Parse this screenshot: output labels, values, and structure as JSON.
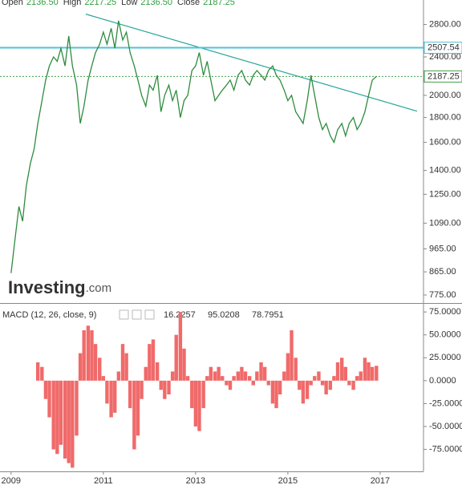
{
  "chart_data": [
    {
      "type": "line",
      "header": [
        {
          "name": "Open",
          "value": {
            "value": 2136.5,
            "label": "2136.50"
          }
        },
        {
          "name": "High",
          "value": {
            "value": 2217.25,
            "label": "2217.25"
          }
        },
        {
          "name": "Low",
          "value": {
            "value": 2136.5,
            "label": "2136.50"
          }
        },
        {
          "name": "Close",
          "value": {
            "value": 2187.25,
            "label": "2187.25"
          }
        }
      ],
      "watermark": [
        "Investing",
        ".com"
      ],
      "log_scale": true,
      "xlim": [
        2008.76,
        2017.94
      ],
      "xticks": [
        2009,
        2011,
        2013,
        2015,
        2017
      ],
      "ylim": [
        746,
        3145
      ],
      "yticks": [
        {
          "value": 775,
          "label": "775.00"
        },
        {
          "value": 865,
          "label": "865.00"
        },
        {
          "value": 965,
          "label": "965.00"
        },
        {
          "value": 1090,
          "label": "1090.00"
        },
        {
          "value": 1250,
          "label": "1250.00"
        },
        {
          "value": 1400,
          "label": "1400.00"
        },
        {
          "value": 1600,
          "label": "1600.00"
        },
        {
          "value": 1800,
          "label": "1800.00"
        },
        {
          "value": 2000,
          "label": "2000.00"
        },
        {
          "value": 2400,
          "label": "2400.00"
        },
        {
          "value": 2800,
          "label": "2800.00"
        }
      ],
      "levels": [
        {
          "value": 2507.54,
          "label": "2507.54",
          "color": "#4fc3d9",
          "dashed": false
        },
        {
          "value": 2187.25,
          "label": "2187.25",
          "color": "#43a047",
          "dashed": true
        }
      ],
      "trendline": {
        "x": [
          2010.62,
          2017.8
        ],
        "y": [
          2941,
          1855
        ],
        "color": "#26a69a"
      },
      "x": [
        2009.0,
        2009.08,
        2009.17,
        2009.25,
        2009.33,
        2009.42,
        2009.5,
        2009.58,
        2009.67,
        2009.75,
        2009.83,
        2009.92,
        2010.0,
        2010.08,
        2010.17,
        2010.25,
        2010.33,
        2010.42,
        2010.5,
        2010.58,
        2010.67,
        2010.75,
        2010.83,
        2010.92,
        2011.0,
        2011.08,
        2011.17,
        2011.25,
        2011.33,
        2011.42,
        2011.5,
        2011.58,
        2011.67,
        2011.75,
        2011.83,
        2011.92,
        2012.0,
        2012.08,
        2012.17,
        2012.25,
        2012.33,
        2012.42,
        2012.5,
        2012.58,
        2012.67,
        2012.75,
        2012.83,
        2012.92,
        2013.0,
        2013.08,
        2013.17,
        2013.25,
        2013.33,
        2013.42,
        2013.5,
        2013.58,
        2013.67,
        2013.75,
        2013.83,
        2013.92,
        2014.0,
        2014.08,
        2014.17,
        2014.25,
        2014.33,
        2014.42,
        2014.5,
        2014.58,
        2014.67,
        2014.75,
        2014.83,
        2014.92,
        2015.0,
        2015.08,
        2015.17,
        2015.25,
        2015.33,
        2015.42,
        2015.5,
        2015.58,
        2015.67,
        2015.75,
        2015.83,
        2015.92,
        2016.0,
        2016.08,
        2016.17,
        2016.25,
        2016.33,
        2016.42,
        2016.5,
        2016.58,
        2016.67,
        2016.75,
        2016.83,
        2016.92
      ],
      "series": [
        {
          "name": "Close",
          "color": "#2e8b3e",
          "values": [
            860,
            1000,
            1180,
            1100,
            1300,
            1450,
            1550,
            1750,
            1950,
            2150,
            2300,
            2400,
            2350,
            2500,
            2300,
            2650,
            2300,
            2100,
            1750,
            1900,
            2150,
            2300,
            2450,
            2550,
            2700,
            2550,
            2750,
            2500,
            2850,
            2600,
            2700,
            2450,
            2300,
            2150,
            2000,
            1900,
            2100,
            2050,
            2200,
            1850,
            2000,
            2100,
            1950,
            2050,
            1800,
            1950,
            2000,
            2250,
            2300,
            2450,
            2200,
            2350,
            2150,
            1950,
            2000,
            2050,
            2100,
            2150,
            2050,
            2200,
            2250,
            2150,
            2100,
            2200,
            2250,
            2200,
            2150,
            2250,
            2300,
            2200,
            2150,
            2050,
            1950,
            2000,
            1850,
            1800,
            1750,
            1950,
            2200,
            2000,
            1800,
            1700,
            1750,
            1650,
            1600,
            1700,
            1750,
            1650,
            1750,
            1800,
            1700,
            1750,
            1850,
            2000,
            2150,
            2187.25
          ]
        }
      ]
    },
    {
      "type": "bar",
      "title": "MACD (12, 26, close, 9)",
      "readouts": [
        {
          "value": 16.2257,
          "color": "#e04848"
        },
        {
          "value": 95.0208,
          "color": "#5a6fd6"
        },
        {
          "value": 78.7951,
          "color": "#e04848"
        }
      ],
      "xlim": [
        2008.76,
        2017.94
      ],
      "ylim": [
        -99,
        83
      ],
      "yticks": [
        {
          "value": 75,
          "label": "75.0000"
        },
        {
          "value": 50,
          "label": "50.0000"
        },
        {
          "value": 25,
          "label": "25.0000"
        },
        {
          "value": 0,
          "label": "0.0000"
        },
        {
          "value": -25,
          "label": "-25.0000"
        },
        {
          "value": -50,
          "label": "-50.0000"
        },
        {
          "value": -75,
          "label": "-75.0000"
        }
      ],
      "color": "#f06a6a",
      "x": [
        2009.0,
        2009.08,
        2009.17,
        2009.25,
        2009.33,
        2009.42,
        2009.5,
        2009.58,
        2009.67,
        2009.75,
        2009.83,
        2009.92,
        2010.0,
        2010.08,
        2010.17,
        2010.25,
        2010.33,
        2010.42,
        2010.5,
        2010.58,
        2010.67,
        2010.75,
        2010.83,
        2010.92,
        2011.0,
        2011.08,
        2011.17,
        2011.25,
        2011.33,
        2011.42,
        2011.5,
        2011.58,
        2011.67,
        2011.75,
        2011.83,
        2011.92,
        2012.0,
        2012.08,
        2012.17,
        2012.25,
        2012.33,
        2012.42,
        2012.5,
        2012.58,
        2012.67,
        2012.75,
        2012.83,
        2012.92,
        2013.0,
        2013.08,
        2013.17,
        2013.25,
        2013.33,
        2013.42,
        2013.5,
        2013.58,
        2013.67,
        2013.75,
        2013.83,
        2013.92,
        2014.0,
        2014.08,
        2014.17,
        2014.25,
        2014.33,
        2014.42,
        2014.5,
        2014.58,
        2014.67,
        2014.75,
        2014.83,
        2014.92,
        2015.0,
        2015.08,
        2015.17,
        2015.25,
        2015.33,
        2015.42,
        2015.5,
        2015.58,
        2015.67,
        2015.75,
        2015.83,
        2015.92,
        2016.0,
        2016.08,
        2016.17,
        2016.25,
        2016.33,
        2016.42,
        2016.5,
        2016.58,
        2016.67,
        2016.75,
        2016.83,
        2016.92
      ],
      "values": [
        null,
        null,
        null,
        null,
        null,
        null,
        null,
        20,
        15,
        -20,
        -40,
        -75,
        -80,
        -70,
        -85,
        -90,
        -95,
        -60,
        30,
        55,
        60,
        55,
        40,
        25,
        5,
        -25,
        -40,
        -35,
        10,
        40,
        30,
        -30,
        -75,
        -60,
        -20,
        15,
        40,
        45,
        20,
        -10,
        -20,
        -15,
        10,
        50,
        75,
        35,
        5,
        -30,
        -50,
        -55,
        -30,
        5,
        15,
        10,
        15,
        5,
        -5,
        -10,
        5,
        10,
        15,
        10,
        5,
        -5,
        10,
        20,
        15,
        -5,
        -25,
        -30,
        -15,
        10,
        30,
        55,
        25,
        -10,
        -25,
        -20,
        -5,
        5,
        10,
        -5,
        -15,
        -10,
        5,
        20,
        25,
        15,
        -5,
        -10,
        5,
        10,
        25,
        20,
        15,
        16.2257
      ]
    }
  ]
}
